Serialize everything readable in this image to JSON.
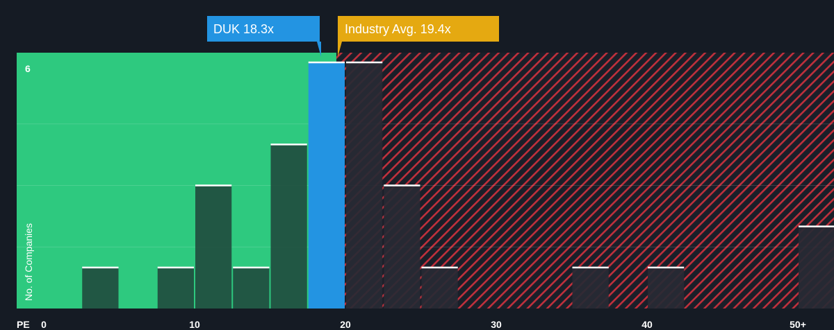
{
  "chart_data": {
    "type": "bar",
    "title": "",
    "xlabel": "PE",
    "ylabel": "No. of Companies",
    "xlim": [
      0,
      52
    ],
    "ylim": [
      0,
      6
    ],
    "x_ticks": [
      {
        "value": 0,
        "label": "0"
      },
      {
        "value": 10,
        "label": "10"
      },
      {
        "value": 20,
        "label": "20"
      },
      {
        "value": 30,
        "label": "30"
      },
      {
        "value": 40,
        "label": "40"
      },
      {
        "value": 50,
        "label": "50+"
      }
    ],
    "y_tick_label": "6",
    "bins": [
      {
        "start": 2.5,
        "end": 5.0,
        "count": 1
      },
      {
        "start": 7.5,
        "end": 10.0,
        "count": 1
      },
      {
        "start": 10.0,
        "end": 12.5,
        "count": 3
      },
      {
        "start": 12.5,
        "end": 15.0,
        "count": 1
      },
      {
        "start": 15.0,
        "end": 17.5,
        "count": 4
      },
      {
        "start": 17.5,
        "end": 20.0,
        "count": 6,
        "highlight": true
      },
      {
        "start": 20.0,
        "end": 22.5,
        "count": 6
      },
      {
        "start": 22.5,
        "end": 25.0,
        "count": 3
      },
      {
        "start": 25.0,
        "end": 27.5,
        "count": 1
      },
      {
        "start": 35.0,
        "end": 37.5,
        "count": 1
      },
      {
        "start": 40.0,
        "end": 42.5,
        "count": 1
      },
      {
        "start": 50.0,
        "end": 52.5,
        "count": 2
      }
    ],
    "company": {
      "label": "DUK 18.3x",
      "value": 18.3
    },
    "industry": {
      "label": "Industry Avg. 19.4x",
      "value": 19.4
    },
    "colors": {
      "background": "#151b24",
      "undervalued_region": "#2ec97f",
      "overvalued_region": "#c0303c",
      "bar": "#214d3f",
      "bar_overvalued": "#272a34",
      "highlight_bar": "#2394e2",
      "bar_cap": "#ffffff",
      "company_callout": "#2394e2",
      "industry_callout": "#e5a911"
    }
  }
}
